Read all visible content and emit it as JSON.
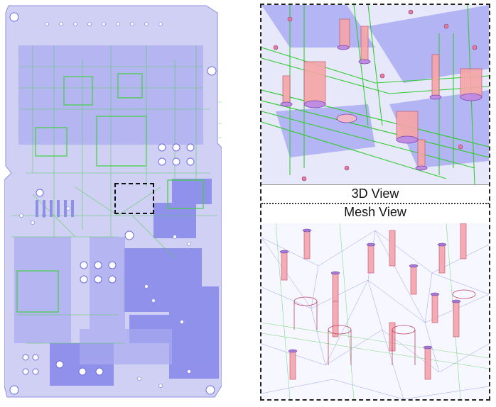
{
  "figure": {
    "view_3d_label": "3D View",
    "mesh_view_label": "Mesh View"
  },
  "colors": {
    "board": "#c9c9f2",
    "board_dark": "#7474e6",
    "trace_green": "#3fd23f",
    "via_red": "#f08080",
    "via_purple": "#8b6fd6",
    "mesh_blue": "#4b5bd6",
    "background": "#ffffff"
  }
}
